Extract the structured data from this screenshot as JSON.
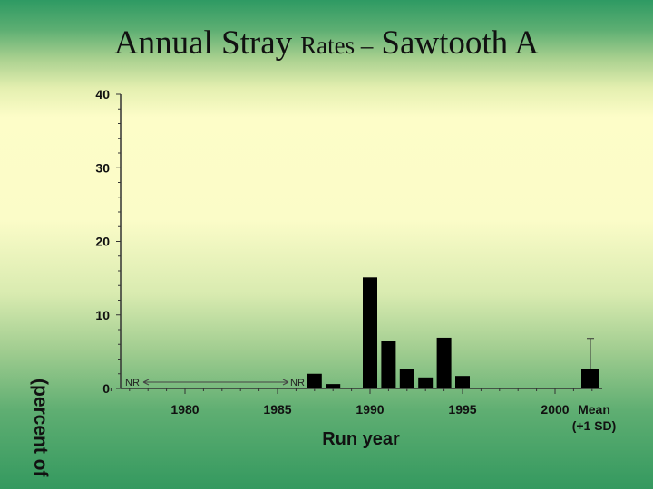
{
  "slide": {
    "title_part1": "Annual Stray",
    "title_part2": "Rates –",
    "title_part3": "Sawtooth A"
  },
  "chart_data": {
    "type": "bar",
    "xlabel": "Run year",
    "ylabel": "(percent of",
    "ylim": [
      0,
      40
    ],
    "yticks": [
      0,
      10,
      20,
      30,
      40
    ],
    "xticks": [
      1980,
      1985,
      1990,
      1995,
      2000
    ],
    "xlim": [
      1976,
      2002
    ],
    "grid": false,
    "not_reported": {
      "label_left": "NR",
      "label_right": "NR",
      "from": 1976,
      "to": 1986
    },
    "x": [
      1987,
      1988,
      1990,
      1991,
      1992,
      1993,
      1994,
      1995
    ],
    "values": [
      2.0,
      0.6,
      15.1,
      6.4,
      2.7,
      1.5,
      6.9,
      1.7
    ],
    "mean": {
      "label_line1": "Mean",
      "label_line2": "(+1 SD)",
      "value": 2.7,
      "sd_upper": 6.8
    },
    "colors": {
      "bar": "#000000",
      "axis": "#333333"
    }
  }
}
